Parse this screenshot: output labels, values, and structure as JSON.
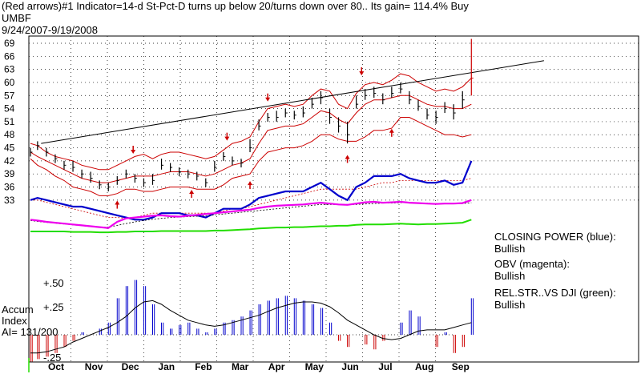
{
  "header": {
    "title": "(Red arrows)#1 Indicator=14-d St-Pct-D turns up below 20/turns down over 80..  Its gain= 114.4% Buy",
    "symbol": "UMBF",
    "date_range": "9/24/2007-9/19/2008"
  },
  "legend": {
    "closing_power_label": "CLOSING POWER (blue):",
    "closing_power_status": "Bullish",
    "obv_label": "OBV (magenta):",
    "obv_status": "Bullish",
    "rel_str_label": "REL.STR..VS DJI (green):",
    "rel_str_status": "Bullish"
  },
  "accum": {
    "line1": "Accum",
    "line2": "Index",
    "line3": "AI= 131/200",
    "plus25": "+.25",
    "plus50": "+.50",
    "minus25": "-.25"
  },
  "colors": {
    "price_bars": "#000000",
    "bands": "#cc0000",
    "closing_power": "#0000cc",
    "obv": "#ee00ee",
    "rel_str": "#22dd00",
    "accum_pos": "#0000cc",
    "accum_neg": "#cc0000",
    "arrows": "#cc0000"
  },
  "chart_data": {
    "type": "line",
    "y_ticks": [
      33,
      36,
      39,
      42,
      45,
      48,
      51,
      54,
      57,
      60,
      63,
      66,
      69
    ],
    "ylim": [
      31,
      71
    ],
    "x_labels": [
      "Oct",
      "Nov",
      "Dec",
      "Jan",
      "Feb",
      "Mar",
      "Apr",
      "May",
      "Jun",
      "Jul",
      "Aug",
      "Sep"
    ],
    "grid": true,
    "price": {
      "x": [
        0,
        4,
        9,
        14,
        19,
        24,
        29,
        34,
        39,
        44,
        49,
        54,
        59,
        64,
        69,
        74,
        79,
        84,
        89,
        94,
        99,
        104,
        109,
        114,
        119,
        124,
        129,
        134,
        139,
        144,
        149,
        154,
        159,
        164,
        169,
        174,
        179,
        184,
        189,
        194,
        199,
        204,
        209,
        214,
        219,
        224,
        229,
        234,
        239,
        244,
        249
      ],
      "close": [
        44,
        45.5,
        44,
        42.5,
        41,
        40.5,
        39,
        38,
        36.5,
        36,
        37.5,
        39,
        38,
        37,
        37.5,
        41,
        40.5,
        39.5,
        39,
        38.5,
        37,
        40.5,
        43,
        42,
        41.5,
        45,
        50,
        52,
        52,
        53,
        52.5,
        53,
        55,
        56.5,
        52,
        50,
        48,
        55,
        57,
        57.5,
        56,
        57.5,
        58.5,
        56,
        54.5,
        52.5,
        52,
        54,
        53,
        56,
        61
      ],
      "high": [
        45,
        46.5,
        45,
        43.5,
        42,
        42,
        40,
        39.5,
        37.5,
        37,
        38.5,
        40,
        39,
        38,
        39,
        42.5,
        41.5,
        40.5,
        40,
        39.5,
        38,
        42,
        44,
        43,
        42.5,
        47,
        51.5,
        53,
        53.5,
        54,
        53.5,
        54.5,
        56.5,
        58,
        54,
        52,
        51,
        57,
        58.5,
        59,
        57.5,
        59,
        60,
        58,
        56,
        54,
        53.5,
        55.5,
        55,
        58,
        70
      ],
      "low": [
        43,
        44.5,
        43,
        41.5,
        40,
        39.5,
        38,
        37,
        35.5,
        35,
        36.5,
        38,
        37,
        36,
        36.5,
        40,
        39.5,
        38.5,
        38,
        37.5,
        36,
        39.5,
        42,
        41,
        40.5,
        44,
        49,
        51,
        51,
        52,
        51.5,
        52,
        54,
        55,
        50.5,
        48.5,
        46,
        54,
        56,
        56.5,
        55,
        56.5,
        57.5,
        55,
        53.5,
        51.5,
        50.5,
        53,
        51.5,
        54,
        57
      ]
    },
    "band_upper": [
      46,
      45.5,
      44,
      43,
      42.5,
      42,
      41,
      40.5,
      40,
      40,
      41,
      42,
      43,
      43.5,
      42.5,
      43.5,
      44,
      44,
      43.5,
      43,
      42.5,
      43,
      44.5,
      46,
      46.5,
      47.5,
      51,
      54,
      54.5,
      55,
      54.5,
      55,
      57,
      58.5,
      58,
      55,
      54,
      57.5,
      59.5,
      60,
      59.5,
      60.5,
      62,
      61.5,
      60,
      59,
      58,
      58.5,
      58,
      59,
      61
    ],
    "band_mid": [
      44,
      43,
      42,
      41,
      40,
      39,
      38,
      37.5,
      37,
      37,
      37.5,
      38,
      38.5,
      38.5,
      38.5,
      39,
      39.5,
      39.5,
      39.5,
      39,
      38.5,
      39,
      40,
      41,
      41.5,
      42.5,
      46,
      49,
      49.5,
      50,
      50,
      50.5,
      52,
      53.5,
      53,
      51.5,
      50.5,
      53,
      55,
      56,
      56,
      56.5,
      57,
      57,
      56,
      55,
      54.5,
      54.5,
      54,
      54,
      55
    ],
    "band_lower": [
      42.5,
      41,
      40,
      38.5,
      37.5,
      36,
      35.5,
      35,
      34,
      34,
      34.5,
      35.5,
      35.5,
      35,
      35,
      35.5,
      36,
      36,
      36,
      35.5,
      35.5,
      35.5,
      36.5,
      38,
      38.5,
      39,
      42,
      44,
      44.5,
      45,
      45,
      45.5,
      46.5,
      48,
      48,
      47,
      46.5,
      46.5,
      47.5,
      49,
      49,
      49.5,
      52,
      52,
      51,
      50,
      49,
      48,
      48,
      47.5,
      48
    ],
    "trendline": [
      [
        6,
        46
      ],
      [
        290,
        65
      ]
    ],
    "arrows": [
      {
        "dir": "down",
        "x": 58,
        "value": 44
      },
      {
        "dir": "up",
        "x": 49,
        "value": 32.5
      },
      {
        "dir": "up",
        "x": 91,
        "value": 35
      },
      {
        "dir": "down",
        "x": 111,
        "value": 47
      },
      {
        "dir": "up",
        "x": 124,
        "value": 37
      },
      {
        "dir": "down",
        "x": 134,
        "value": 56
      },
      {
        "dir": "up",
        "x": 179,
        "value": 43
      },
      {
        "dir": "down",
        "x": 187,
        "value": 62
      },
      {
        "dir": "up",
        "x": 204,
        "value": 49
      }
    ],
    "closing_power": [
      33,
      33.5,
      33,
      32.5,
      32,
      31.5,
      31.5,
      31,
      30.5,
      30,
      29.5,
      29,
      28.5,
      28.5,
      29,
      30,
      30,
      30,
      29.5,
      29.5,
      29,
      30,
      31,
      31,
      31,
      32,
      33.5,
      34,
      34.5,
      35,
      35,
      35,
      36,
      37,
      35.5,
      34,
      33,
      36,
      37,
      38.5,
      38.5,
      38.5,
      39,
      38,
      37.5,
      37,
      37,
      37.5,
      36.5,
      37,
      42
    ],
    "cp_ma": [
      33,
      33,
      32.5,
      32,
      31.5,
      31,
      30.5,
      30,
      29.5,
      29,
      29,
      28.8,
      29,
      29.5,
      30,
      30,
      30,
      30,
      30,
      30,
      30,
      30,
      30.5,
      31,
      31,
      31.5,
      32,
      32.5,
      33,
      33.5,
      34,
      34.5,
      35,
      35.5,
      35.5,
      35.5,
      35.5,
      35.5,
      36,
      36.5,
      37,
      37,
      37.5,
      37.5,
      37.5,
      37.5,
      37.5,
      37.5,
      37.5,
      37.5,
      38
    ],
    "obv": [
      28.5,
      28.3,
      28,
      27.8,
      27.6,
      27.4,
      27.2,
      27,
      26.8,
      26.6,
      28,
      28.8,
      29,
      29.2,
      29.4,
      29.5,
      29.3,
      29.2,
      29.4,
      29.6,
      29.8,
      30,
      30.2,
      30.4,
      30.6,
      30.8,
      31.2,
      31.5,
      31.7,
      31.8,
      31.9,
      32,
      32.2,
      32.4,
      32.2,
      32,
      31.9,
      32.2,
      32.5,
      32.6,
      32.4,
      32.5,
      32.6,
      32.4,
      32.3,
      32.2,
      32.1,
      32.2,
      32.2,
      32.3,
      33
    ],
    "obv_ma": [
      28.3,
      28.1,
      27.9,
      27.7,
      27.5,
      27.3,
      27.1,
      26.9,
      26.8,
      26.8,
      27.2,
      27.6,
      28,
      28.3,
      28.6,
      28.8,
      29,
      29.1,
      29.2,
      29.3,
      29.4,
      29.6,
      29.8,
      30,
      30.2,
      30.4,
      30.6,
      30.8,
      31,
      31.2,
      31.4,
      31.6,
      31.8,
      32,
      32,
      32,
      32,
      32,
      32.1,
      32.2,
      32.3,
      32.3,
      32.4,
      32.4,
      32.3,
      32.3,
      32.2,
      32.2,
      32.2,
      32.2,
      32.4
    ],
    "rel_str": [
      25.8,
      25.8,
      25.8,
      25.8,
      25.8,
      25.7,
      25.7,
      25.7,
      25.6,
      25.6,
      25.7,
      25.7,
      25.8,
      25.8,
      25.8,
      25.9,
      25.9,
      25.9,
      25.9,
      25.9,
      25.9,
      26,
      26,
      26.1,
      26.2,
      26.3,
      26.5,
      26.6,
      26.7,
      26.7,
      26.8,
      26.8,
      26.9,
      27,
      27,
      27.1,
      27.1,
      27.3,
      27.4,
      27.4,
      27.4,
      27.5,
      27.6,
      27.5,
      27.4,
      27.5,
      27.5,
      27.6,
      27.7,
      27.8,
      28.5
    ],
    "accum_index": [
      -0.22,
      -0.2,
      -0.18,
      -0.15,
      -0.1,
      -0.05,
      0.02,
      0,
      0.05,
      0.1,
      0.3,
      0.4,
      0.45,
      0.4,
      0.25,
      0.1,
      0.05,
      0.08,
      0.1,
      0.05,
      0.02,
      0.05,
      0.1,
      0.12,
      0.15,
      0.2,
      0.25,
      0.28,
      0.3,
      0.32,
      0.3,
      0.28,
      0.25,
      0.22,
      0.1,
      -0.05,
      -0.1,
      0,
      -0.08,
      -0.12,
      -0.05,
      0,
      0.1,
      0.2,
      0.15,
      0,
      -0.1,
      0.02,
      -0.15,
      -0.1,
      0.3
    ],
    "accum_ma": [
      -0.15,
      -0.15,
      -0.14,
      -0.12,
      -0.1,
      -0.06,
      -0.03,
      0,
      0.03,
      0.06,
      0.1,
      0.15,
      0.22,
      0.27,
      0.28,
      0.25,
      0.2,
      0.16,
      0.12,
      0.1,
      0.08,
      0.07,
      0.08,
      0.1,
      0.12,
      0.14,
      0.16,
      0.19,
      0.22,
      0.24,
      0.26,
      0.27,
      0.27,
      0.26,
      0.23,
      0.18,
      0.12,
      0.08,
      0.04,
      0,
      -0.03,
      -0.04,
      -0.03,
      0,
      0.03,
      0.04,
      0.04,
      0.04,
      0.06,
      0.08,
      0.1
    ]
  }
}
